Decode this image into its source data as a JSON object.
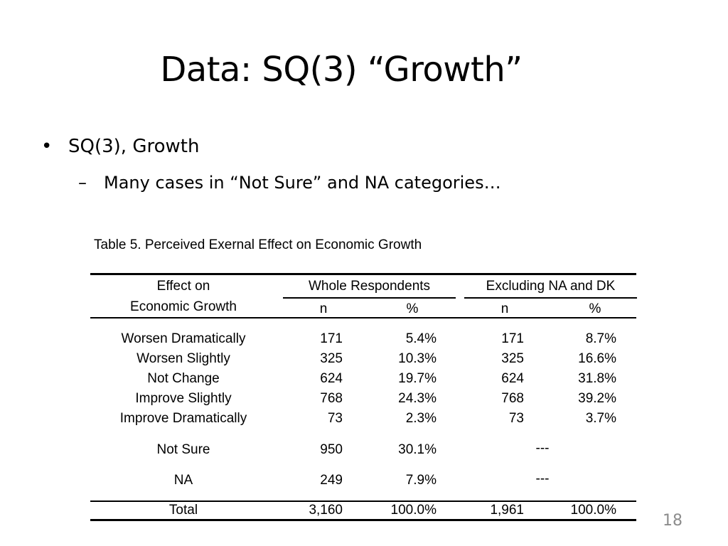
{
  "slide": {
    "title": "Data: SQ(3) “Growth”",
    "bullets": [
      {
        "text": "SQ(3), Growth",
        "marker": "•"
      },
      {
        "text": "Many cases in “Not Sure” and NA categories…",
        "marker": "–"
      }
    ],
    "page_number": "18"
  },
  "table": {
    "caption": "Table 5. Perceived Exernal Effect on Economic Growth",
    "header": {
      "row_label_line1": "Effect on",
      "row_label_line2": "Economic Growth",
      "group1": "Whole Respondents",
      "group2": "Excluding NA and DK",
      "n": "n",
      "pct": "%"
    },
    "rows": [
      {
        "label": "Worsen Dramatically",
        "n1": "171",
        "p1": "5.4%",
        "n2": "171",
        "p2": "8.7%"
      },
      {
        "label": "Worsen Slightly",
        "n1": "325",
        "p1": "10.3%",
        "n2": "325",
        "p2": "16.6%"
      },
      {
        "label": "Not Change",
        "n1": "624",
        "p1": "19.7%",
        "n2": "624",
        "p2": "31.8%"
      },
      {
        "label": "Improve Slightly",
        "n1": "768",
        "p1": "24.3%",
        "n2": "768",
        "p2": "39.2%"
      },
      {
        "label": "Improve Dramatically",
        "n1": "73",
        "p1": "2.3%",
        "n2": "73",
        "p2": "3.7%"
      }
    ],
    "extra_rows": [
      {
        "label": "Not Sure",
        "n1": "950",
        "p1": "30.1%",
        "excluded": "---"
      },
      {
        "label": "NA",
        "n1": "249",
        "p1": "7.9%",
        "excluded": "---"
      }
    ],
    "total": {
      "label": "Total",
      "n1": "3,160",
      "p1": "100.0%",
      "n2": "1,961",
      "p2": "100.0%"
    }
  }
}
